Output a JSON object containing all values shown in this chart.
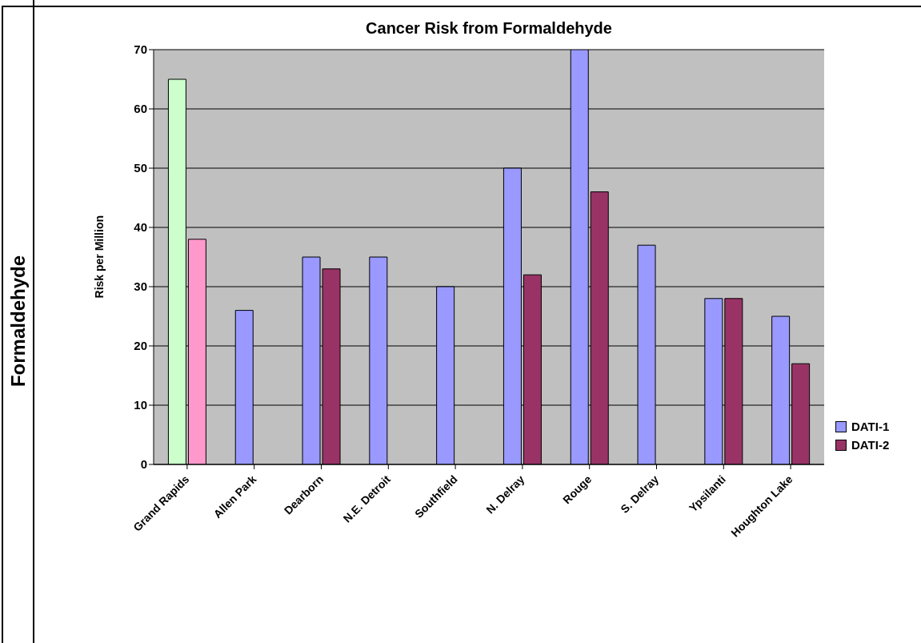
{
  "chart_data": {
    "type": "bar",
    "title": "Cancer Risk from Formaldehyde",
    "ylabel": "Risk per Million",
    "annotations": [
      "Formaldehyde"
    ],
    "categories": [
      "Grand Rapids",
      "Allen Park",
      "Dearborn",
      "N.E. Detroit",
      "Southfield",
      "N. Delray",
      "Rouge",
      "S. Delray",
      "Ypsilanti",
      "Houghton Lake"
    ],
    "series": [
      {
        "name": "DATI-1",
        "color": "#9999ff",
        "colors": [
          "#ccffcc",
          "#9999ff",
          "#9999ff",
          "#9999ff",
          "#9999ff",
          "#9999ff",
          "#9999ff",
          "#9999ff",
          "#9999ff",
          "#9999ff"
        ],
        "values": [
          65,
          26,
          35,
          35,
          30,
          50,
          70,
          37,
          28,
          25
        ]
      },
      {
        "name": "DATI-2",
        "color": "#993366",
        "colors": [
          "#ff99cc",
          "#993366",
          "#993366",
          "#993366",
          "#993366",
          "#993366",
          "#993366",
          "#993366",
          "#993366",
          "#993366"
        ],
        "values": [
          38,
          null,
          33,
          null,
          null,
          32,
          46,
          null,
          28,
          17
        ]
      }
    ],
    "ylim": [
      0,
      70
    ],
    "yticks": [
      0,
      10,
      20,
      30,
      40,
      50,
      60,
      70
    ],
    "grid": "y",
    "legend": "bottom right"
  }
}
